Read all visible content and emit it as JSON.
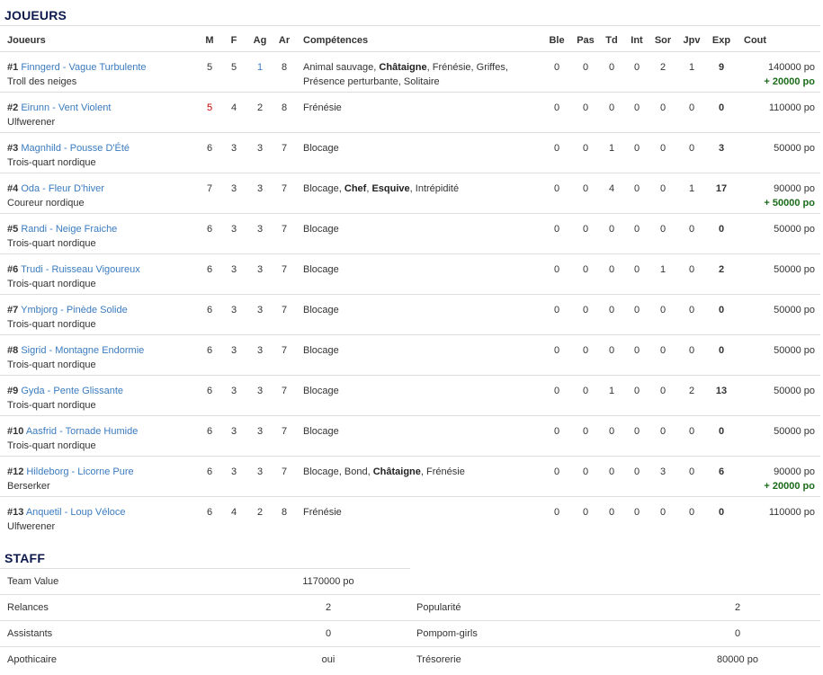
{
  "players_section": {
    "title": "JOUEURS",
    "headers": [
      "Joueurs",
      "M",
      "F",
      "Ag",
      "Ar",
      "Compétences",
      "Ble",
      "Pas",
      "Td",
      "Int",
      "Sor",
      "Jpv",
      "Exp",
      "Cout"
    ]
  },
  "colors": {
    "link": "#3a7bbf",
    "decreased": "#cc0000",
    "increased": "#3a7bbf",
    "bonus": "#1a6b1a",
    "heading": "#0d1a4d"
  },
  "players": [
    {
      "num": "#1",
      "name": "Finngerd - Vague Turbulente",
      "pos": "Troll des neiges",
      "M": "5",
      "F": "5",
      "Ag": "1",
      "Ar": "8",
      "ag_mod": "up",
      "skills": [
        {
          "t": "Animal sauvage"
        },
        {
          "t": "Châtaigne",
          "b": true
        },
        {
          "t": "Frénésie"
        },
        {
          "t": "Griffes"
        },
        {
          "t": "Présence perturbante",
          "br": true
        },
        {
          "t": "Solitaire"
        }
      ],
      "Ble": "0",
      "Pas": "0",
      "Td": "0",
      "Int": "0",
      "Sor": "2",
      "Jpv": "1",
      "Exp": "9",
      "Cout": "140000 po",
      "Extra": "+ 20000 po"
    },
    {
      "num": "#2",
      "name": "Eirunn - Vent Violent",
      "pos": "Ulfwerener",
      "M": "5",
      "m_mod": "down",
      "F": "4",
      "Ag": "2",
      "Ar": "8",
      "skills": [
        {
          "t": "Frénésie"
        }
      ],
      "Ble": "0",
      "Pas": "0",
      "Td": "0",
      "Int": "0",
      "Sor": "0",
      "Jpv": "0",
      "Exp": "0",
      "Cout": "110000 po"
    },
    {
      "num": "#3",
      "name": "Magnhild - Pousse D'Été",
      "pos": "Trois-quart nordique",
      "M": "6",
      "F": "3",
      "Ag": "3",
      "Ar": "7",
      "skills": [
        {
          "t": "Blocage"
        }
      ],
      "Ble": "0",
      "Pas": "0",
      "Td": "1",
      "Int": "0",
      "Sor": "0",
      "Jpv": "0",
      "Exp": "3",
      "Cout": "50000 po"
    },
    {
      "num": "#4",
      "name": "Oda - Fleur D'hiver",
      "pos": "Coureur nordique",
      "M": "7",
      "F": "3",
      "Ag": "3",
      "Ar": "7",
      "skills": [
        {
          "t": "Blocage"
        },
        {
          "t": "Chef",
          "b": true
        },
        {
          "t": "Esquive",
          "b": true
        },
        {
          "t": "Intrépidité"
        }
      ],
      "Ble": "0",
      "Pas": "0",
      "Td": "4",
      "Int": "0",
      "Sor": "0",
      "Jpv": "1",
      "Exp": "17",
      "Cout": "90000 po",
      "Extra": "+ 50000 po"
    },
    {
      "num": "#5",
      "name": "Randi - Neige Fraiche",
      "pos": "Trois-quart nordique",
      "M": "6",
      "F": "3",
      "Ag": "3",
      "Ar": "7",
      "skills": [
        {
          "t": "Blocage"
        }
      ],
      "Ble": "0",
      "Pas": "0",
      "Td": "0",
      "Int": "0",
      "Sor": "0",
      "Jpv": "0",
      "Exp": "0",
      "Cout": "50000 po"
    },
    {
      "num": "#6",
      "name": "Trudi - Ruisseau Vigoureux",
      "pos": "Trois-quart nordique",
      "M": "6",
      "F": "3",
      "Ag": "3",
      "Ar": "7",
      "skills": [
        {
          "t": "Blocage"
        }
      ],
      "Ble": "0",
      "Pas": "0",
      "Td": "0",
      "Int": "0",
      "Sor": "1",
      "Jpv": "0",
      "Exp": "2",
      "Cout": "50000 po"
    },
    {
      "num": "#7",
      "name": "Ymbjorg - Pinède Solide",
      "pos": "Trois-quart nordique",
      "M": "6",
      "F": "3",
      "Ag": "3",
      "Ar": "7",
      "skills": [
        {
          "t": "Blocage"
        }
      ],
      "Ble": "0",
      "Pas": "0",
      "Td": "0",
      "Int": "0",
      "Sor": "0",
      "Jpv": "0",
      "Exp": "0",
      "Cout": "50000 po"
    },
    {
      "num": "#8",
      "name": "Sigrid - Montagne Endormie",
      "pos": "Trois-quart nordique",
      "M": "6",
      "F": "3",
      "Ag": "3",
      "Ar": "7",
      "skills": [
        {
          "t": "Blocage"
        }
      ],
      "Ble": "0",
      "Pas": "0",
      "Td": "0",
      "Int": "0",
      "Sor": "0",
      "Jpv": "0",
      "Exp": "0",
      "Cout": "50000 po"
    },
    {
      "num": "#9",
      "name": "Gyda - Pente Glissante",
      "pos": "Trois-quart nordique",
      "M": "6",
      "F": "3",
      "Ag": "3",
      "Ar": "7",
      "skills": [
        {
          "t": "Blocage"
        }
      ],
      "Ble": "0",
      "Pas": "0",
      "Td": "1",
      "Int": "0",
      "Sor": "0",
      "Jpv": "2",
      "Exp": "13",
      "Cout": "50000 po"
    },
    {
      "num": "#10",
      "name": "Aasfrid - Tornade Humide",
      "pos": "Trois-quart nordique",
      "M": "6",
      "F": "3",
      "Ag": "3",
      "Ar": "7",
      "skills": [
        {
          "t": "Blocage"
        }
      ],
      "Ble": "0",
      "Pas": "0",
      "Td": "0",
      "Int": "0",
      "Sor": "0",
      "Jpv": "0",
      "Exp": "0",
      "Cout": "50000 po"
    },
    {
      "num": "#12",
      "name": "Hildeborg - Licorne Pure",
      "pos": "Berserker",
      "M": "6",
      "F": "3",
      "Ag": "3",
      "Ar": "7",
      "skills": [
        {
          "t": "Blocage"
        },
        {
          "t": "Bond"
        },
        {
          "t": "Châtaigne",
          "b": true
        },
        {
          "t": "Frénésie"
        }
      ],
      "Ble": "0",
      "Pas": "0",
      "Td": "0",
      "Int": "0",
      "Sor": "3",
      "Jpv": "0",
      "Exp": "6",
      "Cout": "90000 po",
      "Extra": "+ 20000 po"
    },
    {
      "num": "#13",
      "name": "Anquetil - Loup Véloce",
      "pos": "Ulfwerener",
      "M": "6",
      "F": "4",
      "Ag": "2",
      "Ar": "8",
      "skills": [
        {
          "t": "Frénésie"
        }
      ],
      "Ble": "0",
      "Pas": "0",
      "Td": "0",
      "Int": "0",
      "Sor": "0",
      "Jpv": "0",
      "Exp": "0",
      "Cout": "110000 po"
    }
  ],
  "staff": {
    "title": "STAFF",
    "team_value_label": "Team Value",
    "team_value": "1170000 po",
    "rows": [
      {
        "l1": "Relances",
        "v1": "2",
        "l2": "Popularité",
        "v2": "2"
      },
      {
        "l1": "Assistants",
        "v1": "0",
        "l2": "Pompom-girls",
        "v2": "0"
      },
      {
        "l1": "Apothicaire",
        "v1": "oui",
        "l2": "Trésorerie",
        "v2": "80000 po"
      }
    ]
  }
}
